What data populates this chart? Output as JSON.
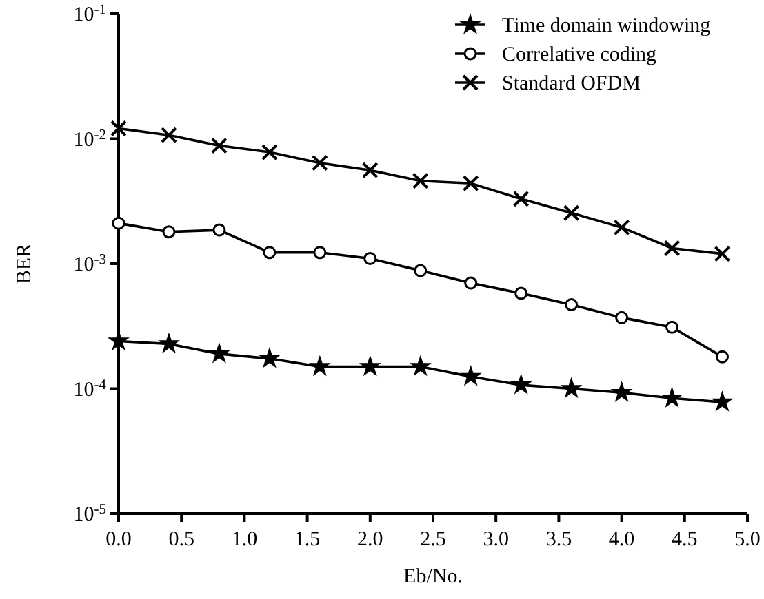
{
  "chart_data": {
    "type": "line",
    "xlabel": "Eb/No.",
    "ylabel": "BER",
    "log": "y",
    "legend": "top right",
    "grid": false,
    "line_style": "solid",
    "x": [
      0,
      0.4,
      0.8,
      1.2,
      1.6,
      2.0,
      2.4,
      2.8,
      3.2,
      3.6,
      4.0,
      4.4,
      4.8
    ],
    "xlim": [
      0,
      5
    ],
    "xticks": [
      {
        "value": 0,
        "label": "0.0"
      },
      0.5,
      {
        "value": 1,
        "label": "1.0"
      },
      1.5,
      {
        "value": 2,
        "label": "2.0"
      },
      2.5,
      {
        "value": 3,
        "label": "3.0"
      },
      3.5,
      {
        "value": 4,
        "label": "4.0"
      },
      4.5,
      {
        "value": 5,
        "label": "5.0"
      }
    ],
    "ylim": [
      1e-05,
      0.1
    ],
    "yticks": [
      {
        "value": 1e-05,
        "label": "10$^{-5}$"
      },
      {
        "value": 0.0001,
        "label": "10$^{-4}$"
      },
      {
        "value": 0.001,
        "label": "10$^{-3}$"
      },
      {
        "value": 0.01,
        "label": "10$^{-2}$"
      },
      {
        "value": 0.1,
        "label": "10$^{-1}$"
      }
    ],
    "series": [
      {
        "name": "Time domain windowing",
        "color": "#000000",
        "marker": "star",
        "values": [
          0.00024,
          0.000228,
          0.00019,
          0.000174,
          0.00015,
          0.00015,
          0.00015,
          0.000125,
          0.000107,
          0.0001,
          9.3e-05,
          8.4e-05,
          7.8e-05
        ]
      },
      {
        "name": "Correlative coding",
        "color": "#000000",
        "marker": "circle",
        "values": [
          0.00211,
          0.0018,
          0.00186,
          0.00123,
          0.00123,
          0.0011,
          0.00088,
          0.0007,
          0.00058,
          0.00047,
          0.00037,
          0.00031,
          0.00018
        ]
      },
      {
        "name": "Standard OFDM",
        "color": "#000000",
        "marker": "cross",
        "values": [
          0.0121,
          0.0107,
          0.0088,
          0.0078,
          0.0064,
          0.0056,
          0.0046,
          0.0044,
          0.0033,
          0.00255,
          0.00195,
          0.00133,
          0.0012
        ]
      }
    ]
  }
}
